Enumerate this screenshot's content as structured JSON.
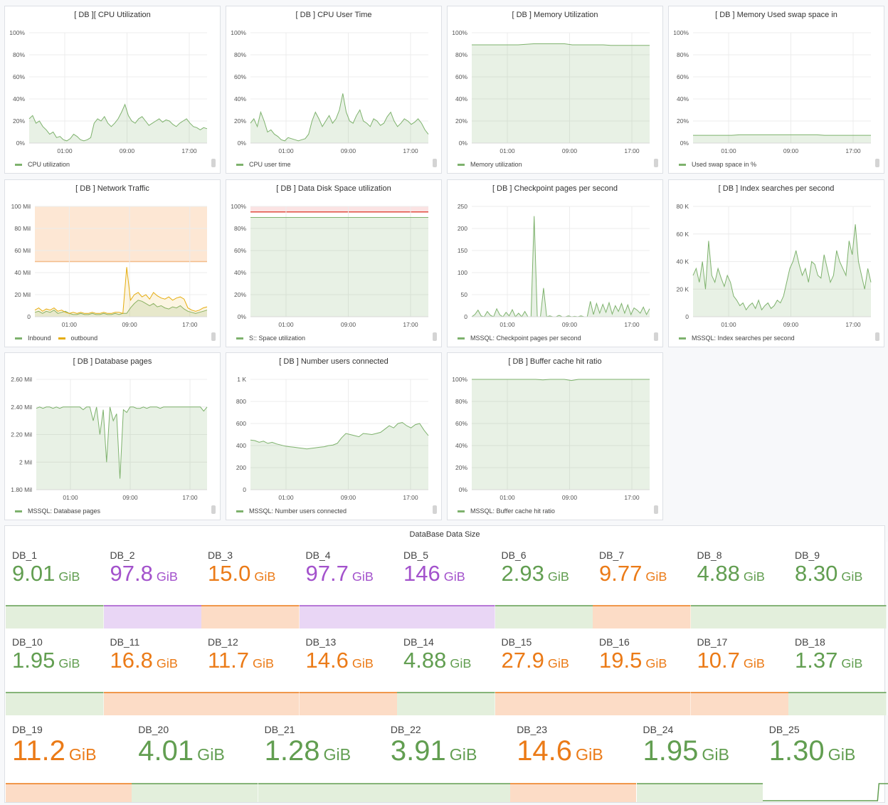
{
  "colors": {
    "green": "#629e51",
    "green_fill": "#e3efdc",
    "orange": "#eb7b18",
    "orange_fill": "#fcdcc6",
    "purple": "#a352cc",
    "purple_fill": "#e9d6f5",
    "red": "#e24d42",
    "yellow": "#e5ac0e"
  },
  "charts": [
    {
      "id": "cpu",
      "title": "[ DB ][ CPU Utilization",
      "legend": [
        {
          "label": "CPU utilization",
          "color": "#7eb26d"
        }
      ],
      "y_ticks": [
        "100%",
        "80%",
        "60%",
        "40%",
        "20%",
        "0%"
      ],
      "x_ticks": [
        "01:00",
        "09:00",
        "17:00"
      ],
      "ymax": 100,
      "series": [
        [
          22,
          25,
          18,
          20,
          15,
          12,
          8,
          10,
          5,
          6,
          3,
          2,
          4,
          8,
          6,
          3,
          2,
          3,
          5,
          18,
          22,
          20,
          24,
          18,
          15,
          18,
          22,
          28,
          35,
          25,
          20,
          18,
          22,
          24,
          20,
          16,
          18,
          20,
          22,
          19,
          21,
          20,
          17,
          15,
          18,
          20,
          22,
          18,
          15,
          14,
          12,
          14,
          13
        ]
      ]
    },
    {
      "id": "cpu_user",
      "title": "[ DB ] CPU User Time",
      "legend": [
        {
          "label": "CPU user time",
          "color": "#7eb26d"
        }
      ],
      "y_ticks": [
        "100%",
        "80%",
        "60%",
        "40%",
        "20%",
        "0%"
      ],
      "x_ticks": [
        "01:00",
        "09:00",
        "17:00"
      ],
      "ymax": 100,
      "series": [
        [
          18,
          22,
          15,
          28,
          20,
          10,
          12,
          8,
          6,
          3,
          2,
          5,
          4,
          3,
          2,
          3,
          4,
          8,
          20,
          28,
          22,
          15,
          20,
          25,
          18,
          22,
          30,
          45,
          28,
          20,
          18,
          25,
          30,
          20,
          18,
          15,
          22,
          20,
          16,
          18,
          24,
          28,
          20,
          15,
          18,
          22,
          20,
          17,
          19,
          22,
          18,
          12,
          8
        ]
      ]
    },
    {
      "id": "mem",
      "title": "[ DB ] Memory Utilization",
      "legend": [
        {
          "label": "Memory utilization",
          "color": "#7eb26d"
        }
      ],
      "y_ticks": [
        "100%",
        "80%",
        "60%",
        "40%",
        "20%",
        "0%"
      ],
      "x_ticks": [
        "01:00",
        "09:00",
        "17:00"
      ],
      "ymax": 100,
      "series": [
        [
          89,
          89,
          89,
          89,
          89,
          89,
          89,
          89.5,
          90,
          90,
          90,
          90,
          90,
          89,
          89,
          89,
          89,
          89,
          88.5,
          88.5,
          88.5,
          88.5,
          88.5,
          88.5
        ]
      ]
    },
    {
      "id": "swap",
      "title": "[ DB ] Memory Used swap space in",
      "legend": [
        {
          "label": "Used swap space in %",
          "color": "#7eb26d"
        }
      ],
      "y_ticks": [
        "100%",
        "80%",
        "60%",
        "40%",
        "20%",
        "0%"
      ],
      "x_ticks": [
        "01:00",
        "09:00",
        "17:00"
      ],
      "ymax": 100,
      "series": [
        [
          7,
          7,
          7,
          7,
          7,
          7,
          7.5,
          7.5,
          7.5,
          7.5,
          7.5,
          7.5,
          7.5,
          7.5,
          7.5,
          7.5,
          7.5,
          7,
          7,
          7,
          7,
          7,
          7,
          7
        ]
      ]
    },
    {
      "id": "net",
      "title": "[ DB ] Network Traffic",
      "legend": [
        {
          "label": "Inbound",
          "color": "#7eb26d"
        },
        {
          "label": "outbound",
          "color": "#e5ac0e"
        }
      ],
      "y_ticks": [
        "100 Mil",
        "80 Mil",
        "60 Mil",
        "40 Mil",
        "20 Mil",
        "0"
      ],
      "x_ticks": [
        "01:00",
        "09:00",
        "17:00"
      ],
      "ymax": 100,
      "threshold": 50,
      "series": [
        [
          4,
          5,
          3,
          5,
          4,
          6,
          3,
          4,
          5,
          3,
          2,
          2,
          3,
          2,
          2,
          3,
          2,
          2,
          3,
          2,
          2,
          3,
          2,
          3,
          3,
          8,
          12,
          15,
          14,
          12,
          10,
          12,
          9,
          10,
          8,
          7,
          9,
          8,
          10,
          7,
          5,
          4,
          3,
          4,
          5,
          6
        ],
        [
          6,
          8,
          5,
          7,
          6,
          8,
          5,
          6,
          4,
          3,
          4,
          3,
          4,
          3,
          3,
          4,
          3,
          3,
          4,
          3,
          3,
          4,
          4,
          3,
          45,
          15,
          20,
          22,
          18,
          20,
          16,
          22,
          19,
          17,
          16,
          18,
          15,
          17,
          18,
          16,
          8,
          6,
          5,
          6,
          8,
          9
        ]
      ]
    },
    {
      "id": "disk",
      "title": "[ DB ] Data Disk Space utilization",
      "legend": [
        {
          "label": "S:: Space utilization",
          "color": "#7eb26d"
        }
      ],
      "y_ticks": [
        "100%",
        "80%",
        "60%",
        "40%",
        "20%",
        "0%"
      ],
      "x_ticks": [
        "01:00",
        "09:00",
        "17:00"
      ],
      "ymax": 100,
      "threshold": 95,
      "series": [
        [
          90,
          90,
          90,
          90,
          90,
          90,
          90,
          90,
          90,
          90,
          90,
          90,
          90,
          90,
          90,
          90,
          90,
          90,
          90,
          90,
          90,
          90,
          90,
          90
        ]
      ]
    },
    {
      "id": "checkpoint",
      "title": "[ DB ] Checkpoint pages per second",
      "legend": [
        {
          "label": "MSSQL: Checkpoint pages per second",
          "color": "#7eb26d"
        }
      ],
      "y_ticks": [
        "250",
        "200",
        "150",
        "100",
        "50",
        "0"
      ],
      "x_ticks": [
        "01:00",
        "09:00",
        "17:00"
      ],
      "ymax": 250,
      "series": [
        [
          0,
          5,
          15,
          2,
          0,
          12,
          3,
          0,
          18,
          4,
          0,
          10,
          2,
          16,
          0,
          8,
          0,
          12,
          0,
          0,
          228,
          0,
          0,
          65,
          0,
          2,
          0,
          0,
          3,
          0,
          0,
          2,
          0,
          1,
          0,
          2,
          0,
          0,
          35,
          5,
          30,
          8,
          28,
          10,
          32,
          6,
          25,
          12,
          30,
          8,
          27,
          5,
          20,
          15,
          8,
          22,
          5,
          18
        ]
      ]
    },
    {
      "id": "index",
      "title": "[ DB ] Index searches per second",
      "legend": [
        {
          "label": "MSSQL: Index searches per second",
          "color": "#7eb26d"
        }
      ],
      "y_ticks": [
        "80 K",
        "60 K",
        "40 K",
        "20 K",
        "0"
      ],
      "x_ticks": [
        "01:00",
        "09:00",
        "17:00"
      ],
      "ymax": 80,
      "series": [
        [
          30,
          35,
          25,
          40,
          20,
          55,
          30,
          25,
          35,
          28,
          22,
          30,
          25,
          15,
          12,
          8,
          10,
          5,
          8,
          10,
          6,
          12,
          5,
          8,
          10,
          6,
          8,
          12,
          10,
          15,
          25,
          35,
          40,
          48,
          38,
          30,
          35,
          25,
          40,
          38,
          30,
          28,
          45,
          35,
          25,
          30,
          48,
          40,
          35,
          30,
          55,
          45,
          67,
          40,
          30,
          20,
          35,
          25
        ]
      ]
    },
    {
      "id": "dbpages",
      "title": "[ DB ] Database pages",
      "legend": [
        {
          "label": "MSSQL: Database pages",
          "color": "#7eb26d"
        }
      ],
      "y_ticks": [
        "2.60 Mil",
        "2.40 Mil",
        "2.20 Mil",
        "2 Mil",
        "1.80 Mil"
      ],
      "x_ticks": [
        "01:00",
        "09:00",
        "17:00"
      ],
      "ymin": 1.8,
      "ymax": 2.6,
      "series": [
        [
          2.39,
          2.4,
          2.39,
          2.4,
          2.4,
          2.39,
          2.4,
          2.39,
          2.4,
          2.4,
          2.4,
          2.4,
          2.4,
          2.4,
          2.38,
          2.4,
          2.4,
          2.3,
          2.4,
          2.2,
          2.38,
          2.0,
          2.4,
          2.3,
          2.35,
          1.88,
          2.38,
          2.36,
          2.4,
          2.4,
          2.39,
          2.39,
          2.4,
          2.39,
          2.4,
          2.4,
          2.4,
          2.39,
          2.4,
          2.4,
          2.4,
          2.4,
          2.4,
          2.4,
          2.4,
          2.4,
          2.4,
          2.4,
          2.4,
          2.4,
          2.37,
          2.4
        ]
      ]
    },
    {
      "id": "users",
      "title": "[ DB ] Number users connected",
      "legend": [
        {
          "label": "MSSQL: Number users connected",
          "color": "#7eb26d"
        }
      ],
      "y_ticks": [
        "1 K",
        "800",
        "600",
        "400",
        "200",
        "0"
      ],
      "x_ticks": [
        "01:00",
        "09:00",
        "17:00"
      ],
      "ymax": 1000,
      "series": [
        [
          450,
          445,
          430,
          440,
          420,
          430,
          415,
          405,
          395,
          390,
          385,
          380,
          375,
          370,
          375,
          380,
          385,
          390,
          400,
          405,
          420,
          470,
          510,
          500,
          490,
          480,
          510,
          505,
          500,
          510,
          520,
          550,
          580,
          560,
          600,
          610,
          580,
          560,
          590,
          600,
          540,
          490
        ]
      ]
    },
    {
      "id": "buffer",
      "title": "[ DB ] Buffer cache hit ratio",
      "legend": [
        {
          "label": "MSSQL: Buffer cache hit ratio",
          "color": "#7eb26d"
        }
      ],
      "y_ticks": [
        "100%",
        "80%",
        "60%",
        "40%",
        "20%",
        "0%"
      ],
      "x_ticks": [
        "01:00",
        "09:00",
        "17:00"
      ],
      "ymax": 100,
      "series": [
        [
          100,
          100,
          100,
          100,
          100,
          100,
          100,
          100,
          100,
          100,
          99.5,
          100,
          100,
          100,
          99,
          100,
          100,
          100,
          100,
          100,
          100,
          100,
          100,
          100,
          100,
          100
        ]
      ]
    }
  ],
  "stats_panel": {
    "title": "DataBase Data Size",
    "unit": "GiB",
    "items": [
      {
        "name": "DB_1",
        "value": "9.01",
        "color": "green"
      },
      {
        "name": "DB_2",
        "value": "97.8",
        "color": "purple"
      },
      {
        "name": "DB_3",
        "value": "15.0",
        "color": "orange"
      },
      {
        "name": "DB_4",
        "value": "97.7",
        "color": "purple"
      },
      {
        "name": "DB_5",
        "value": "146",
        "color": "purple"
      },
      {
        "name": "DB_6",
        "value": "2.93",
        "color": "green"
      },
      {
        "name": "DB_7",
        "value": "9.77",
        "color": "orange"
      },
      {
        "name": "DB_8",
        "value": "4.88",
        "color": "green"
      },
      {
        "name": "DB_9",
        "value": "8.30",
        "color": "green"
      },
      {
        "name": "DB_10",
        "value": "1.95",
        "color": "green"
      },
      {
        "name": "DB_11",
        "value": "16.8",
        "color": "orange"
      },
      {
        "name": "DB_12",
        "value": "11.7",
        "color": "orange"
      },
      {
        "name": "DB_13",
        "value": "14.6",
        "color": "orange"
      },
      {
        "name": "DB_14",
        "value": "4.88",
        "color": "green"
      },
      {
        "name": "DB_15",
        "value": "27.9",
        "color": "orange"
      },
      {
        "name": "DB_16",
        "value": "19.5",
        "color": "orange"
      },
      {
        "name": "DB_17",
        "value": "10.7",
        "color": "orange"
      },
      {
        "name": "DB_18",
        "value": "1.37",
        "color": "green"
      },
      {
        "name": "DB_19",
        "value": "11.2",
        "color": "orange"
      },
      {
        "name": "DB_20",
        "value": "4.01",
        "color": "green"
      },
      {
        "name": "DB_21",
        "value": "1.28",
        "color": "green"
      },
      {
        "name": "DB_22",
        "value": "3.91",
        "color": "green"
      },
      {
        "name": "DB_23",
        "value": "14.6",
        "color": "orange"
      },
      {
        "name": "DB_24",
        "value": "1.95",
        "color": "green"
      },
      {
        "name": "DB_25",
        "value": "1.30",
        "color": "green"
      }
    ]
  }
}
